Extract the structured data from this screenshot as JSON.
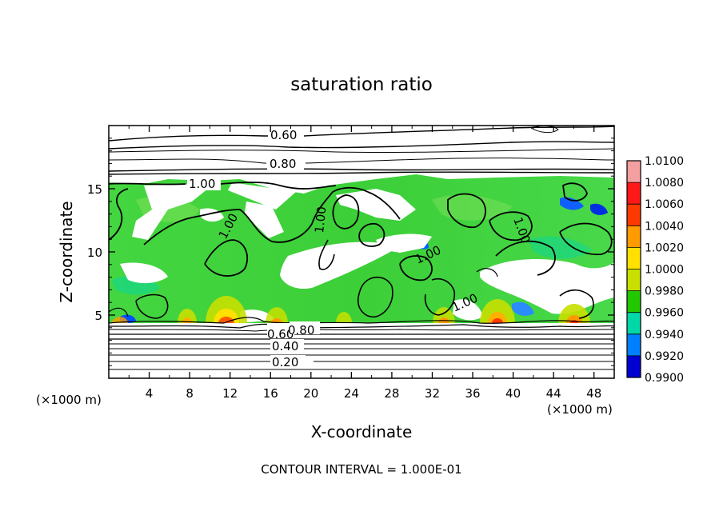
{
  "chart_data": {
    "type": "heatmap",
    "title": "saturation ratio",
    "xlabel": "X-coordinate",
    "ylabel": "Z-coordinate",
    "x_unit": "(×1000 m)",
    "y_unit": "(×1000 m)",
    "xlim": [
      0,
      50
    ],
    "ylim": [
      0,
      20
    ],
    "x_ticks": [
      4,
      8,
      12,
      16,
      20,
      24,
      28,
      32,
      36,
      40,
      44,
      48
    ],
    "y_ticks": [
      5,
      10,
      15
    ],
    "colorbar": {
      "ticks": [
        "1.0100",
        "1.0080",
        "1.0060",
        "1.0040",
        "1.0020",
        "1.0000",
        "0.9980",
        "0.9960",
        "0.9940",
        "0.9920",
        "0.9900"
      ],
      "colors": [
        "#f5a0a0",
        "#ff1818",
        "#ff3a00",
        "#ff9a00",
        "#ffe000",
        "#c8e000",
        "#22c800",
        "#00d8a8",
        "#0080ff",
        "#0000d0",
        "#7a2aa8"
      ]
    },
    "contour_labels": [
      "0.60",
      "0.80",
      "1.00",
      "1.00",
      "1.00",
      "1.00",
      "1.00",
      "1.00",
      "0.60",
      "0.80",
      "0.40",
      "0.20"
    ],
    "footnote": "CONTOUR INTERVAL = 1.000E-01"
  }
}
